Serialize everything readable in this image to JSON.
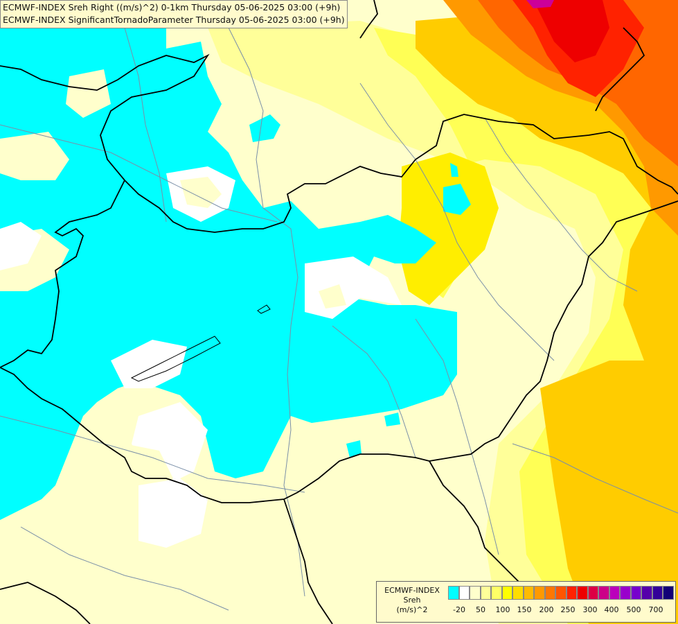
{
  "title": {
    "line1": "ECMWF-INDEX Sreh Right ((m/s)^2) 0-1km Thursday 05-06-2025 03:00 (+9h)",
    "line2": "ECMWF-INDEX SignificantTornadoParameter Thursday 05-06-2025 03:00 (+9h)"
  },
  "legend": {
    "line1": "ECMWF-INDEX",
    "line2": "Sreh",
    "line3": "(m/s)^2",
    "swatch_colors": [
      "#00ffff",
      "#ffffff",
      "#ffffcc",
      "#ffff99",
      "#ffff66",
      "#ffff00",
      "#ffdd00",
      "#ffbb00",
      "#ff9900",
      "#ff7700",
      "#ff5500",
      "#ff2200",
      "#ee0000",
      "#dd0044",
      "#cc0088",
      "#bb00bb",
      "#9900cc",
      "#7700cc",
      "#5500aa",
      "#330099",
      "#110077"
    ],
    "ticks": [
      "-20",
      "50",
      "100",
      "150",
      "200",
      "250",
      "300",
      "400",
      "500",
      "700"
    ]
  },
  "colors": {
    "cyan": "#00ffff",
    "white": "#ffffff",
    "pale_yellow": "#ffffcc",
    "light_yellow": "#ffff99",
    "yellow": "#ffff55",
    "bright_yellow": "#ffff00",
    "gold": "#ffcc00",
    "orange": "#ff9900",
    "dark_orange": "#ff6600",
    "red": "#ff2200",
    "dark_red": "#ee0000",
    "magenta": "#cc0099",
    "border": "#000000",
    "river": "#7a8fa8"
  }
}
